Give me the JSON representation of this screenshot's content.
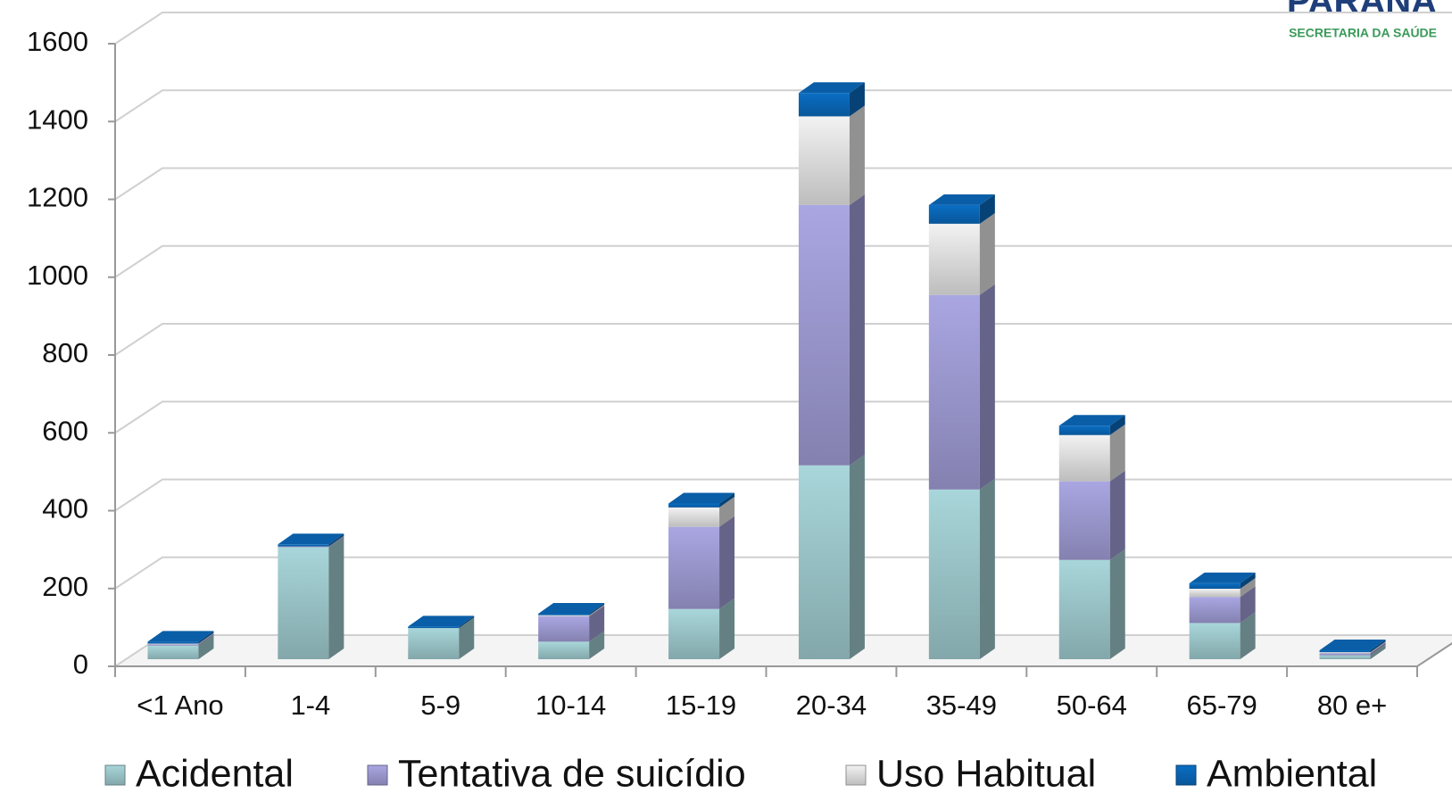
{
  "logo": {
    "title": "PARANÁ",
    "subtitle": "SECRETARIA DA SAÚDE"
  },
  "chart_data": {
    "type": "bar3d_stacked",
    "categories": [
      "<1 Ano",
      "1-4",
      "5-9",
      "10-14",
      "15-19",
      "20-34",
      "35-49",
      "50-64",
      "65-79",
      "80 e+"
    ],
    "series": [
      {
        "name": "Acidental",
        "color": "#a8d6da",
        "values": [
          35,
          288,
          80,
          45,
          129,
          498,
          436,
          255,
          93,
          10
        ]
      },
      {
        "name": "Tentativa de suicídio",
        "color": "#a9a6e2",
        "values": [
          3,
          2,
          0,
          65,
          211,
          669,
          500,
          202,
          67,
          5
        ]
      },
      {
        "name": "Uso Habitual",
        "color": "#f2f2f2",
        "values": [
          2,
          0,
          0,
          3,
          50,
          228,
          183,
          119,
          21,
          3
        ]
      },
      {
        "name": "Ambiental",
        "color": "#0a6ec4",
        "values": [
          5,
          5,
          4,
          4,
          10,
          60,
          48,
          24,
          14,
          5
        ]
      }
    ],
    "ylim": [
      0,
      1600
    ],
    "yticks": [
      0,
      200,
      400,
      600,
      800,
      1000,
      1200,
      1400,
      1600
    ],
    "grid": true,
    "legend": "bottom"
  }
}
